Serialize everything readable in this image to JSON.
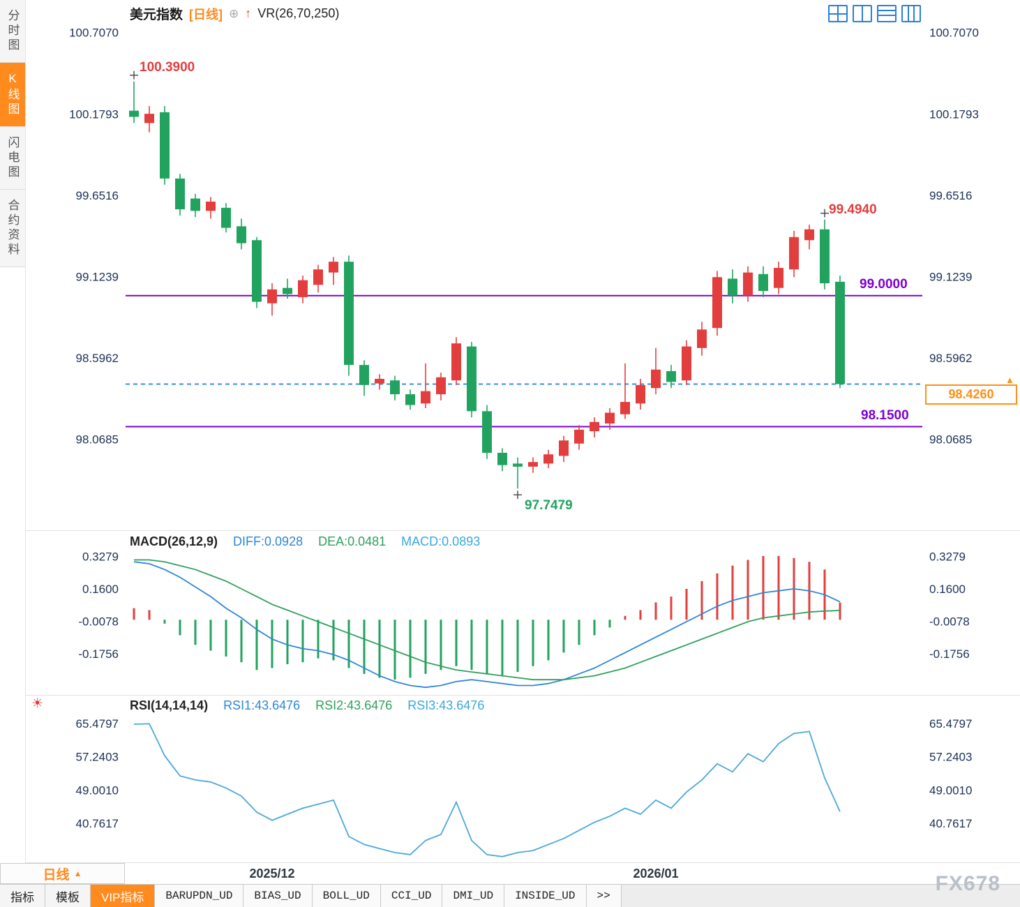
{
  "sidebar": {
    "items": [
      {
        "label": "分时图",
        "active": false
      },
      {
        "label": "K线图",
        "active": true
      },
      {
        "label": "闪电图",
        "active": false
      },
      {
        "label": "合约资料",
        "active": false
      }
    ]
  },
  "header": {
    "symbol": "美元指数",
    "period": "[日线]",
    "plus_icon": "⊕",
    "arrow_icon": "↑",
    "indicator": "VR(26,70,250)"
  },
  "annotations": {
    "high_label": "100.3900",
    "swing_high_label": "99.4940",
    "low_label": "97.7479",
    "hline_upper_label": "99.0000",
    "hline_lower_label": "98.1500",
    "last_price_label": "98.4260",
    "price_arrow": "▲",
    "sun_icon": "☀"
  },
  "macd_header": {
    "title": "MACD(26,12,9)",
    "diff": "DIFF:0.0928",
    "dea": "DEA:0.0481",
    "macd": "MACD:0.0893"
  },
  "rsi_header": {
    "title": "RSI(14,14,14)",
    "rsi1": "RSI1:43.6476",
    "rsi2": "RSI2:43.6476",
    "rsi3": "RSI3:43.6476"
  },
  "bottom_period": {
    "label": "日线",
    "arrow": "▲"
  },
  "bottom_tabs": [
    {
      "label": "指标",
      "active": false,
      "mono": false
    },
    {
      "label": "模板",
      "active": false,
      "mono": false
    },
    {
      "label": "VIP指标",
      "active": true,
      "mono": false
    },
    {
      "label": "BARUPDN_UD",
      "active": false,
      "mono": true
    },
    {
      "label": "BIAS_UD",
      "active": false,
      "mono": true
    },
    {
      "label": "BOLL_UD",
      "active": false,
      "mono": true
    },
    {
      "label": "CCI_UD",
      "active": false,
      "mono": true
    },
    {
      "label": "DMI_UD",
      "active": false,
      "mono": true
    },
    {
      "label": "INSIDE_UD",
      "active": false,
      "mono": true
    },
    {
      "label": ">>",
      "active": false,
      "mono": true
    }
  ],
  "watermark": "FX678",
  "colors": {
    "up": "#e23e3e",
    "down": "#21a35f",
    "hline": "#7d00d0",
    "dashed": "#1f7fe8",
    "diff": "#2f86d5",
    "dea": "#2fa05c",
    "rsi": "#4aa8d8",
    "accent_orange": "#ff8a1e"
  },
  "chart_data": {
    "type": "candlestick",
    "symbol": "美元指数",
    "period": "日线",
    "main": {
      "yticks": [
        100.707,
        100.1793,
        99.6516,
        99.1239,
        98.5962,
        98.0685
      ],
      "price_min": 97.5,
      "price_max": 100.76,
      "hlines": [
        99.0,
        98.15
      ],
      "last_price": 98.426,
      "high_annotation": 100.39,
      "swing_high_annotation": 99.494,
      "low_annotation": 97.7479,
      "candles": [
        [
          100.2,
          100.39,
          100.12,
          100.16
        ],
        [
          100.12,
          100.23,
          100.06,
          100.18
        ],
        [
          100.19,
          100.23,
          99.72,
          99.76
        ],
        [
          99.76,
          99.79,
          99.52,
          99.56
        ],
        [
          99.63,
          99.66,
          99.51,
          99.55
        ],
        [
          99.55,
          99.64,
          99.5,
          99.61
        ],
        [
          99.57,
          99.6,
          99.41,
          99.44
        ],
        [
          99.45,
          99.5,
          99.3,
          99.34
        ],
        [
          99.36,
          99.38,
          98.92,
          98.96
        ],
        [
          98.95,
          99.08,
          98.87,
          99.04
        ],
        [
          99.05,
          99.11,
          98.98,
          99.01
        ],
        [
          98.99,
          99.13,
          98.95,
          99.1
        ],
        [
          99.07,
          99.2,
          99.02,
          99.17
        ],
        [
          99.15,
          99.25,
          99.07,
          99.22
        ],
        [
          99.22,
          99.26,
          98.48,
          98.55
        ],
        [
          98.55,
          98.58,
          98.35,
          98.42
        ],
        [
          98.43,
          98.49,
          98.39,
          98.46
        ],
        [
          98.45,
          98.48,
          98.32,
          98.36
        ],
        [
          98.36,
          98.39,
          98.26,
          98.29
        ],
        [
          98.3,
          98.56,
          98.27,
          98.38
        ],
        [
          98.36,
          98.5,
          98.32,
          98.47
        ],
        [
          98.45,
          98.73,
          98.42,
          98.69
        ],
        [
          98.67,
          98.7,
          98.21,
          98.25
        ],
        [
          98.25,
          98.29,
          97.94,
          97.98
        ],
        [
          97.98,
          98.01,
          97.86,
          97.9
        ],
        [
          97.91,
          97.95,
          97.7479,
          97.89
        ],
        [
          97.89,
          97.95,
          97.85,
          97.92
        ],
        [
          97.91,
          98.0,
          97.88,
          97.97
        ],
        [
          97.96,
          98.09,
          97.92,
          98.06
        ],
        [
          98.04,
          98.16,
          98.0,
          98.13
        ],
        [
          98.12,
          98.21,
          98.08,
          98.18
        ],
        [
          98.17,
          98.27,
          98.13,
          98.24
        ],
        [
          98.23,
          98.56,
          98.2,
          98.31
        ],
        [
          98.3,
          98.46,
          98.26,
          98.42
        ],
        [
          98.4,
          98.66,
          98.36,
          98.52
        ],
        [
          98.51,
          98.55,
          98.4,
          98.44
        ],
        [
          98.45,
          98.71,
          98.42,
          98.67
        ],
        [
          98.66,
          98.83,
          98.61,
          98.78
        ],
        [
          98.79,
          99.16,
          98.74,
          99.12
        ],
        [
          99.11,
          99.17,
          98.95,
          99.0
        ],
        [
          99.0,
          99.19,
          98.96,
          99.15
        ],
        [
          99.14,
          99.19,
          98.99,
          99.03
        ],
        [
          99.05,
          99.22,
          99.01,
          99.18
        ],
        [
          99.17,
          99.42,
          99.12,
          99.38
        ],
        [
          99.36,
          99.46,
          99.3,
          99.43
        ],
        [
          99.43,
          99.494,
          99.04,
          99.08
        ],
        [
          99.09,
          99.13,
          98.4,
          98.426
        ]
      ],
      "markers": [
        {
          "index": 0,
          "at": "high"
        },
        {
          "index": 45,
          "at": "high"
        },
        {
          "index": 25,
          "at": "low"
        }
      ]
    },
    "macd": {
      "params": "(26,12,9)",
      "diff_last": 0.0928,
      "dea_last": 0.0481,
      "macd_last": 0.0893,
      "yticks": [
        0.3279,
        0.16,
        -0.0078,
        -0.1756
      ],
      "range": [
        -0.36,
        0.42
      ],
      "hist": [
        0.06,
        0.05,
        -0.02,
        -0.08,
        -0.13,
        -0.16,
        -0.19,
        -0.22,
        -0.26,
        -0.25,
        -0.23,
        -0.22,
        -0.2,
        -0.21,
        -0.25,
        -0.28,
        -0.3,
        -0.31,
        -0.3,
        -0.28,
        -0.26,
        -0.24,
        -0.26,
        -0.28,
        -0.29,
        -0.27,
        -0.24,
        -0.21,
        -0.17,
        -0.13,
        -0.08,
        -0.04,
        0.02,
        0.05,
        0.09,
        0.12,
        0.16,
        0.2,
        0.24,
        0.28,
        0.31,
        0.33,
        0.33,
        0.32,
        0.3,
        0.26,
        0.089
      ],
      "diff": [
        0.3,
        0.29,
        0.26,
        0.22,
        0.17,
        0.12,
        0.06,
        0.01,
        -0.05,
        -0.1,
        -0.13,
        -0.15,
        -0.16,
        -0.18,
        -0.21,
        -0.25,
        -0.29,
        -0.32,
        -0.34,
        -0.35,
        -0.34,
        -0.32,
        -0.31,
        -0.32,
        -0.33,
        -0.34,
        -0.34,
        -0.33,
        -0.31,
        -0.28,
        -0.25,
        -0.21,
        -0.17,
        -0.13,
        -0.09,
        -0.05,
        -0.01,
        0.03,
        0.07,
        0.1,
        0.12,
        0.14,
        0.15,
        0.16,
        0.15,
        0.13,
        0.0928
      ],
      "dea": [
        0.31,
        0.31,
        0.3,
        0.28,
        0.26,
        0.23,
        0.2,
        0.16,
        0.12,
        0.08,
        0.05,
        0.02,
        -0.01,
        -0.04,
        -0.07,
        -0.1,
        -0.13,
        -0.16,
        -0.19,
        -0.22,
        -0.24,
        -0.26,
        -0.27,
        -0.28,
        -0.29,
        -0.3,
        -0.31,
        -0.31,
        -0.31,
        -0.3,
        -0.29,
        -0.27,
        -0.25,
        -0.22,
        -0.19,
        -0.16,
        -0.13,
        -0.1,
        -0.07,
        -0.04,
        -0.01,
        0.01,
        0.02,
        0.03,
        0.04,
        0.045,
        0.0481
      ]
    },
    "rsi": {
      "params": "(14,14,14)",
      "values_last": [
        43.6476,
        43.6476,
        43.6476
      ],
      "yticks": [
        65.4797,
        57.2403,
        49.001,
        40.7617
      ],
      "range": [
        31.6,
        68.76
      ],
      "series": [
        65.3,
        65.4,
        57.5,
        52.5,
        51.5,
        51.0,
        49.5,
        47.5,
        43.5,
        41.5,
        43.0,
        44.5,
        45.5,
        46.5,
        37.5,
        35.5,
        34.5,
        33.5,
        33.0,
        36.5,
        38.0,
        46.0,
        36.5,
        33.0,
        32.5,
        33.5,
        34.0,
        35.5,
        37.0,
        39.0,
        41.0,
        42.5,
        44.5,
        43.0,
        46.5,
        44.5,
        48.5,
        51.5,
        55.5,
        53.5,
        58.0,
        56.0,
        60.5,
        63.0,
        63.5,
        52.0,
        43.6476
      ]
    },
    "x_labels": [
      {
        "label": "2025/12",
        "index": 9
      },
      {
        "label": "2026/01",
        "index": 34
      }
    ]
  }
}
